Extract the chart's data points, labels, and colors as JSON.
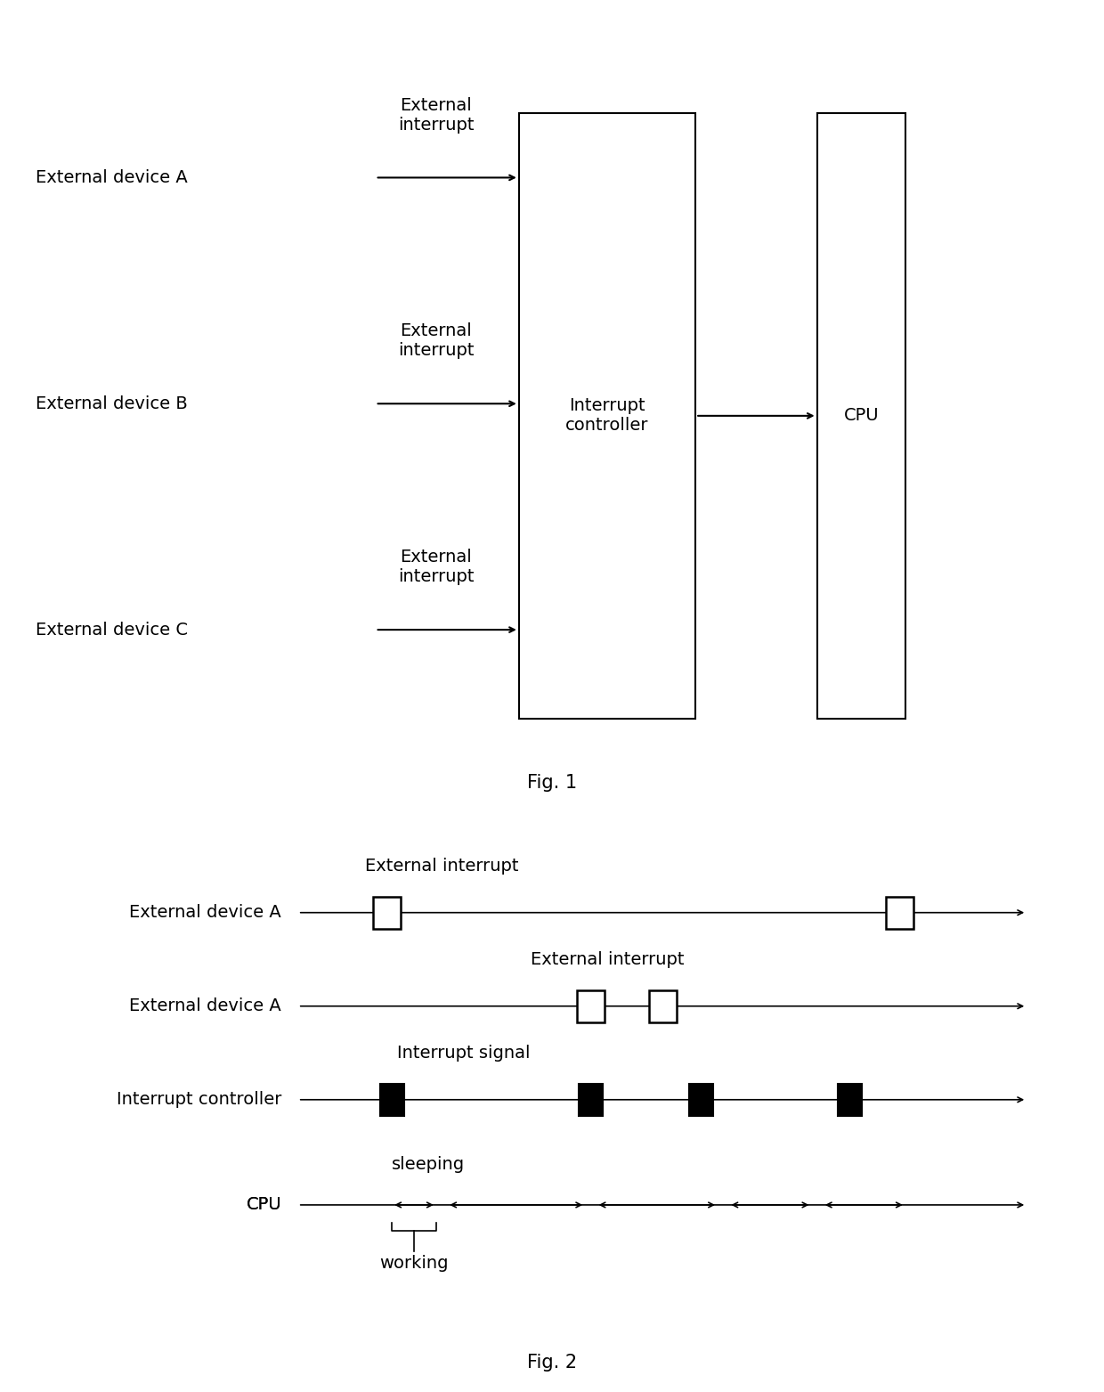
{
  "fig1": {
    "devices": [
      "External device A",
      "External device B",
      "External device C"
    ],
    "device_labels": [
      "External\ninterrupt",
      "External\ninterrupt",
      "External\ninterrupt"
    ],
    "interrupt_controller_label": "Interrupt\ncontroller",
    "cpu_label": "CPU",
    "fig_caption": "Fig. 1"
  },
  "fig2": {
    "row_labels": [
      "External device A",
      "External device A",
      "Interrupt controller",
      "CPU"
    ],
    "label_above_row1": "External interrupt",
    "label_above_row2": "External interrupt",
    "label_above_row3": "Interrupt signal",
    "cpu_label_sleeping": "sleeping",
    "cpu_label_working": "working",
    "fig_caption": "Fig. 2"
  },
  "font_size": 14,
  "font_family": "DejaVu Sans",
  "line_color": "#000000",
  "bg_color": "#ffffff"
}
